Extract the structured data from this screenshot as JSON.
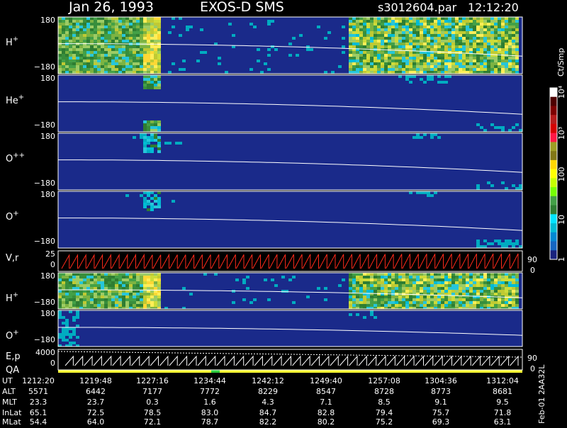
{
  "header": {
    "date": "Jan 26, 1993",
    "instrument": "EXOS-D SMS",
    "file": "s3012604.par",
    "time": "12:12:20"
  },
  "colorbar": {
    "unit": "Ct/Smp",
    "ticks": [
      "1",
      "10",
      "100",
      "10³",
      "10⁴"
    ],
    "colors": [
      "#1a237e",
      "#1565c0",
      "#0288d1",
      "#00bcd4",
      "#00e5ff",
      "#2e7d32",
      "#43a047",
      "#76ff03",
      "#c6ff00",
      "#ffff00",
      "#ffd600",
      "#827717",
      "#9e9d24",
      "#ff1744",
      "#d50000",
      "#b71c1c",
      "#7f0000",
      "#4e0000",
      "#ffffff"
    ]
  },
  "panels": [
    {
      "id": "h-plus",
      "label": "H",
      "sup": "+",
      "ymax": "180",
      "ymin": "−180"
    },
    {
      "id": "he-plus",
      "label": "He",
      "sup": "+",
      "ymax": "180",
      "ymin": "−180"
    },
    {
      "id": "o-plus-plus",
      "label": "O",
      "sup": "++",
      "ymax": "180",
      "ymin": "−180"
    },
    {
      "id": "o-plus",
      "label": "O",
      "sup": "+",
      "ymax": "180",
      "ymin": "−180"
    },
    {
      "id": "vr",
      "label": "V,r",
      "sup": "",
      "ymax": "25",
      "ymin": "0",
      "rmax": "90",
      "rmin": "0"
    },
    {
      "id": "h-plus-2",
      "label": "H",
      "sup": "+",
      "ymax": "180",
      "ymin": "−180"
    },
    {
      "id": "o-plus-2",
      "label": "O",
      "sup": "+",
      "ymax": "180",
      "ymin": "−180"
    },
    {
      "id": "ep-qa",
      "label": "E,p",
      "label2": "QA",
      "sup": "",
      "ymax": "4000",
      "ymin": "0",
      "rmax": "90",
      "rmin": "0"
    }
  ],
  "side_label": "Feb-01 2AA32L",
  "table": {
    "row_labels": [
      "UT",
      "ALT",
      "MLT",
      "InLat",
      "MLat"
    ],
    "columns": [
      [
        "1212:20",
        "5571",
        "23.3",
        "65.1",
        "54.4"
      ],
      [
        "1219:48",
        "6442",
        "23.7",
        "72.5",
        "64.0"
      ],
      [
        "1227:16",
        "7177",
        "0.3",
        "78.5",
        "72.1"
      ],
      [
        "1234:44",
        "7772",
        "1.6",
        "83.0",
        "78.7"
      ],
      [
        "1242:12",
        "8229",
        "4.3",
        "84.7",
        "82.2"
      ],
      [
        "1249:40",
        "8547",
        "7.1",
        "82.8",
        "80.2"
      ],
      [
        "1257:08",
        "8728",
        "8.5",
        "79.4",
        "75.2"
      ],
      [
        "1304:36",
        "8773",
        "9.1",
        "75.7",
        "69.3"
      ],
      [
        "1312:04",
        "8681",
        "9.5",
        "71.8",
        "63.1"
      ]
    ]
  },
  "chart_data": {
    "type": "heatmap",
    "title": "Jan 26, 1993   EXOS-D SMS",
    "x_ticks": [
      "1212:20",
      "1219:48",
      "1227:16",
      "1234:44",
      "1242:12",
      "1249:40",
      "1257:08",
      "1304:36",
      "1312:04"
    ],
    "colorbar_label": "Ct/Smp",
    "colorbar_scale": "log",
    "colorbar_range": [
      1,
      10000
    ],
    "panel_ylim": [
      -180,
      180
    ],
    "series": [
      {
        "name": "H+"
      },
      {
        "name": "He+"
      },
      {
        "name": "O++"
      },
      {
        "name": "O+"
      },
      {
        "name": "V,r"
      },
      {
        "name": "H+"
      },
      {
        "name": "O+"
      },
      {
        "name": "E,p QA"
      }
    ]
  }
}
